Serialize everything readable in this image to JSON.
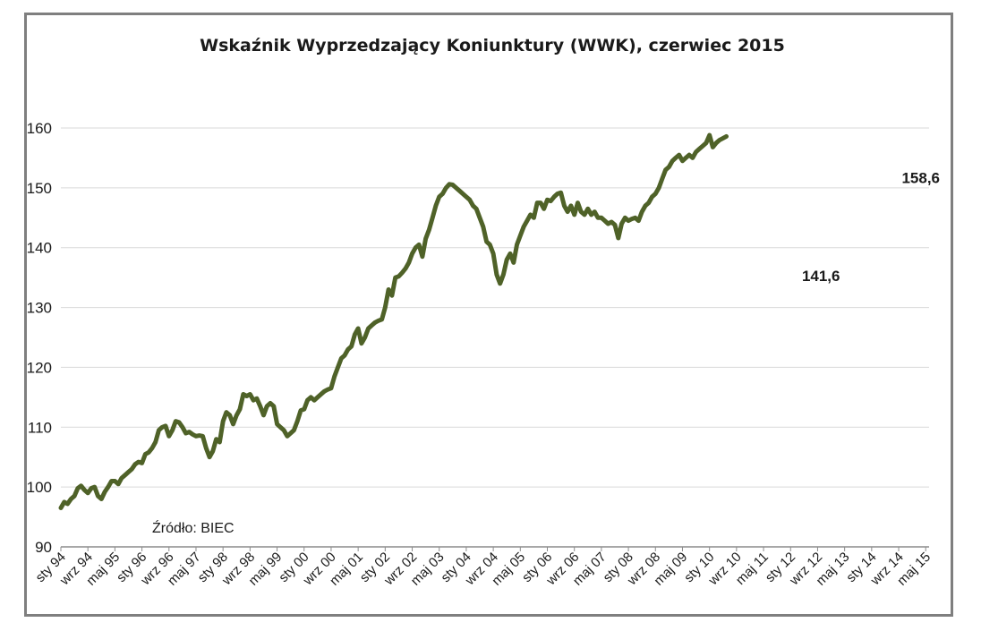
{
  "chart_data": {
    "type": "line",
    "title": "Wskaźnik Wyprzedzający Koniunktury (WWK), czerwiec 2015",
    "source": "Źródło: BIEC",
    "ylim": [
      90,
      160
    ],
    "yticks": [
      90,
      100,
      110,
      120,
      130,
      140,
      150,
      160
    ],
    "grid": true,
    "color": "#4f6228",
    "xticks": [
      "sty 94",
      "wrz 94",
      "maj 95",
      "sty 96",
      "wrz 96",
      "maj 97",
      "sty 98",
      "wrz 98",
      "maj 99",
      "sty 00",
      "wrz 00",
      "maj 01",
      "sty 02",
      "wrz 02",
      "maj 03",
      "sty 04",
      "wrz 04",
      "maj 05",
      "sty 06",
      "wrz 06",
      "maj 07",
      "sty 08",
      "wrz 08",
      "maj 09",
      "sty 10",
      "wrz 10",
      "maj 11",
      "sty 12",
      "wrz 12",
      "maj 13",
      "sty 14",
      "wrz 14",
      "maj 15"
    ],
    "series": [
      {
        "x_start": "1994-01",
        "x_end": "2015-06",
        "values": [
          96.5,
          97.5,
          97.2,
          98.0,
          98.5,
          99.8,
          100.2,
          99.5,
          99.0,
          99.8,
          100.0,
          98.5,
          98.0,
          99.2,
          100.0,
          101.0,
          101.0,
          100.5,
          101.5,
          102.0,
          102.5,
          103.0,
          103.8,
          104.2,
          104.0,
          105.5,
          105.8,
          106.5,
          107.5,
          109.5,
          110.0,
          110.2,
          108.5,
          109.5,
          111.0,
          110.8,
          110.0,
          109.0,
          109.2,
          108.8,
          108.5,
          108.6,
          108.5,
          106.5,
          105.0,
          106.0,
          108.0,
          107.5,
          111.0,
          112.5,
          112.0,
          110.5,
          112.0,
          113.0,
          115.5,
          115.2,
          115.5,
          114.5,
          114.8,
          113.5,
          112.0,
          113.5,
          114.0,
          113.5,
          110.5,
          110.0,
          109.5,
          108.5,
          109.0,
          109.5,
          111.0,
          112.8,
          113.0,
          114.5,
          115.0,
          114.5,
          115.0,
          115.5,
          116.0,
          116.3,
          116.5,
          118.5,
          120.0,
          121.5,
          122.0,
          123.0,
          123.5,
          125.5,
          126.5,
          124.0,
          125.0,
          126.5,
          127.0,
          127.5,
          127.8,
          128.0,
          130.0,
          133.0,
          132.0,
          135.0,
          135.2,
          135.8,
          136.5,
          137.5,
          139.0,
          140.0,
          140.5,
          138.5,
          141.5,
          143.0,
          145.0,
          147.0,
          148.5,
          149.0,
          150.0,
          150.6,
          150.5,
          150.0,
          149.5,
          149.0,
          148.5,
          148.0,
          147.0,
          146.5,
          145.0,
          143.5,
          141.0,
          140.5,
          139.0,
          135.5,
          134.0,
          135.5,
          138.0,
          139.0,
          137.5,
          140.5,
          142.0,
          143.5,
          144.5,
          145.5,
          145.0,
          147.5,
          147.5,
          146.5,
          148.0,
          147.8,
          148.5,
          149.0,
          149.2,
          147.0,
          146.0,
          147.0,
          145.5,
          147.5,
          146.0,
          145.5,
          146.5,
          145.5,
          146.0,
          145.0,
          145.0,
          144.5,
          144.0,
          144.3,
          143.8,
          141.6,
          144.0,
          145.0,
          144.5,
          144.8,
          145.0,
          144.5,
          146.0,
          147.0,
          147.5,
          148.5,
          149.0,
          150.0,
          151.5,
          153.0,
          153.5,
          154.5,
          155.0,
          155.5,
          154.5,
          155.0,
          155.5,
          155.0,
          156.0,
          156.5,
          157.0,
          157.5,
          158.8,
          156.8,
          157.5,
          158.0,
          158.3,
          158.6
        ]
      }
    ],
    "annotations": [
      {
        "text": "141,6",
        "x": "2012-10",
        "y": 141.6
      },
      {
        "text": "158,6",
        "x": "2015-06",
        "y": 158.6
      }
    ]
  }
}
